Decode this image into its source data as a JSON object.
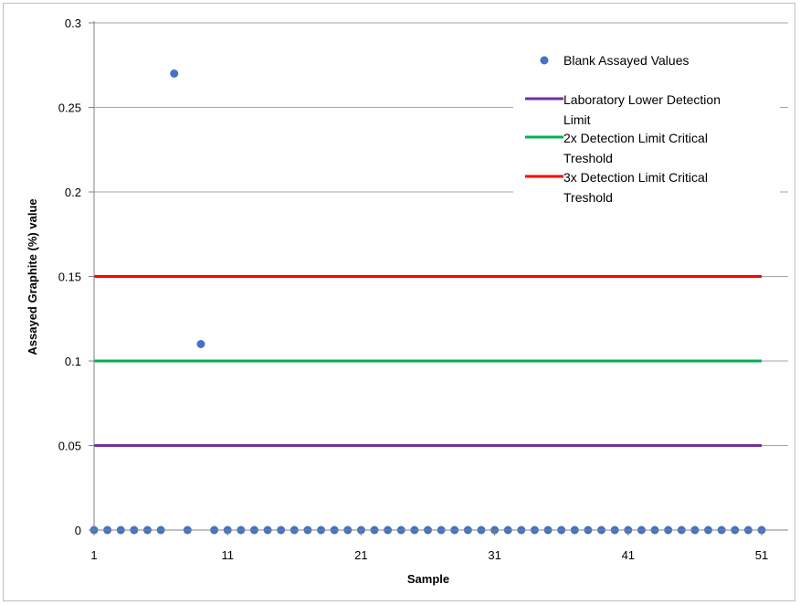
{
  "chart_data": {
    "type": "scatter",
    "xlabel": "Sample",
    "ylabel": "Assayed Graphite  (%) value",
    "xlim": [
      1,
      51
    ],
    "ylim": [
      0,
      0.3
    ],
    "x_ticks": [
      1,
      11,
      21,
      31,
      41,
      51
    ],
    "y_ticks": [
      0,
      0.05,
      0.1,
      0.15,
      0.2,
      0.25,
      0.3
    ],
    "x_tick_labels": [
      "1",
      "11",
      "21",
      "31",
      "41",
      "51"
    ],
    "y_tick_labels": [
      "0",
      "0.05",
      "0.1",
      "0.15",
      "0.2",
      "0.25",
      "0.3"
    ],
    "grid": "horizontal",
    "legend_position": "top-right",
    "series": [
      {
        "name": "Blank Assayed Values",
        "kind": "scatter",
        "color": "#4472C4",
        "x": [
          1,
          2,
          3,
          4,
          5,
          6,
          7,
          8,
          9,
          10,
          11,
          12,
          13,
          14,
          15,
          16,
          17,
          18,
          19,
          20,
          21,
          22,
          23,
          24,
          25,
          26,
          27,
          28,
          29,
          30,
          31,
          32,
          33,
          34,
          35,
          36,
          37,
          38,
          39,
          40,
          41,
          42,
          43,
          44,
          45,
          46,
          47,
          48,
          49,
          50,
          51
        ],
        "y": [
          0,
          0,
          0,
          0,
          0,
          0,
          0.27,
          0,
          0.11,
          0,
          0,
          0,
          0,
          0,
          0,
          0,
          0,
          0,
          0,
          0,
          0,
          0,
          0,
          0,
          0,
          0,
          0,
          0,
          0,
          0,
          0,
          0,
          0,
          0,
          0,
          0,
          0,
          0,
          0,
          0,
          0,
          0,
          0,
          0,
          0,
          0,
          0,
          0,
          0,
          0,
          0
        ]
      },
      {
        "name": "Laboratory Lower Detection Limit",
        "kind": "line",
        "color": "#7030A0",
        "x": [
          1,
          51
        ],
        "y": [
          0.05,
          0.05
        ]
      },
      {
        "name": "2x Detection Limit Critical Treshold",
        "kind": "line",
        "color": "#00B050",
        "x": [
          1,
          51
        ],
        "y": [
          0.1,
          0.1
        ]
      },
      {
        "name": "3x Detection Limit Critical Treshold",
        "kind": "line",
        "color": "#FF0000",
        "x": [
          1,
          51
        ],
        "y": [
          0.15,
          0.15
        ]
      }
    ],
    "legend_lines": [
      [
        "Blank Assayed Values"
      ],
      [
        "Laboratory Lower Detection",
        "Limit"
      ],
      [
        "2x Detection Limit Critical",
        "Treshold"
      ],
      [
        "3x Detection Limit Critical",
        "Treshold"
      ]
    ]
  }
}
